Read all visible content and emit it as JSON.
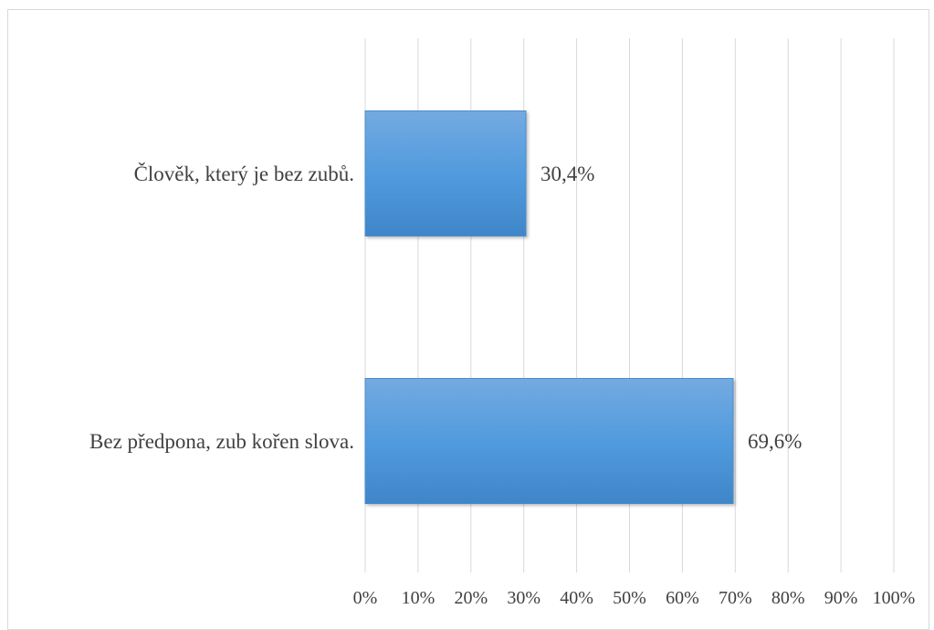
{
  "chart_data": {
    "type": "bar",
    "orientation": "horizontal",
    "categories": [
      "Člověk, který je bez zubů.",
      "Bez předpona, zub kořen slova."
    ],
    "values": [
      30.4,
      69.6
    ],
    "data_labels": [
      "30,4%",
      "69,6%"
    ],
    "xlim": [
      0,
      100
    ],
    "x_ticks": [
      0,
      10,
      20,
      30,
      40,
      50,
      60,
      70,
      80,
      90,
      100
    ],
    "x_tick_labels": [
      "0%",
      "10%",
      "20%",
      "30%",
      "40%",
      "50%",
      "60%",
      "70%",
      "80%",
      "90%",
      "100%"
    ],
    "grid": "vertical",
    "legend": "none",
    "bar_color": "#5b9bd5"
  }
}
